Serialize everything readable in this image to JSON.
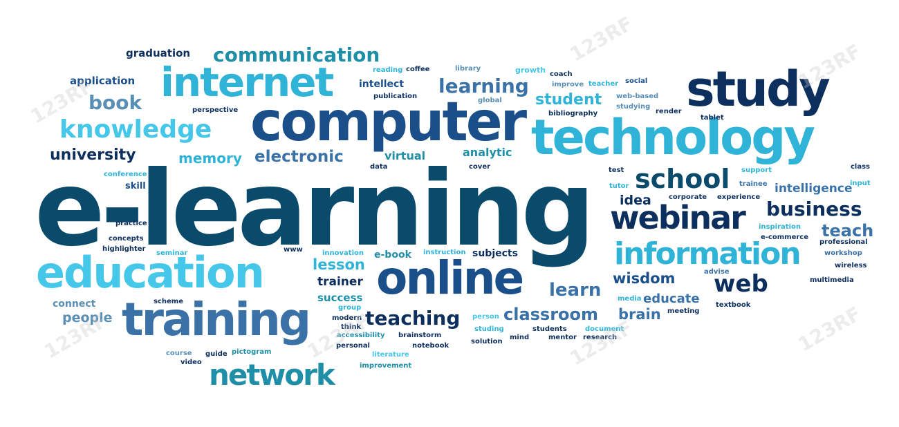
{
  "palette": {
    "navy": "#0d2f5e",
    "dark_teal": "#0a4a6b",
    "blue": "#1a4f8a",
    "steel": "#3a72a8",
    "teal": "#1f8fa8",
    "cyan": "#2fb3d6",
    "light_cyan": "#45c7ea",
    "grey_blue": "#5a8fb5"
  },
  "words": [
    "e-learning",
    "computer",
    "study",
    "technology",
    "internet",
    "education",
    "training",
    "online",
    "webinar",
    "information",
    "network",
    "knowledge",
    "school",
    "communication",
    "web",
    "business",
    "book",
    "learning",
    "teaching",
    "classroom",
    "electronic",
    "university",
    "memory",
    "teach",
    "intelligence",
    "lesson",
    "learn",
    "wisdom",
    "student",
    "educate",
    "brain",
    "idea",
    "trainer",
    "success",
    "people",
    "connect",
    "graduation",
    "application",
    "virtual",
    "analytic",
    "skill",
    "subjects",
    "e-book",
    "intellect",
    "publication",
    "reading",
    "coffee",
    "library",
    "growth",
    "coach",
    "improve",
    "teacher",
    "social",
    "web-based",
    "studying",
    "render",
    "tablet",
    "bibliography",
    "global",
    "perspective",
    "conference",
    "practice",
    "concepts",
    "highlighter",
    "seminar",
    "www",
    "innovation",
    "instruction",
    "data",
    "cover",
    "test",
    "support",
    "class",
    "tutor",
    "trainee",
    "input",
    "corporate",
    "experience",
    "inspiration",
    "e-commerce",
    "professional",
    "workshop",
    "wireless",
    "advise",
    "multimedia",
    "media",
    "meeting",
    "textbook",
    "scheme",
    "group",
    "modern",
    "think",
    "accessibility",
    "brainstorm",
    "personal",
    "notebook",
    "person",
    "studing",
    "solution",
    "mind",
    "students",
    "mentor",
    "document",
    "research",
    "course",
    "guide",
    "pictogram",
    "literature",
    "video",
    "improvement"
  ],
  "watermark": "123RF"
}
